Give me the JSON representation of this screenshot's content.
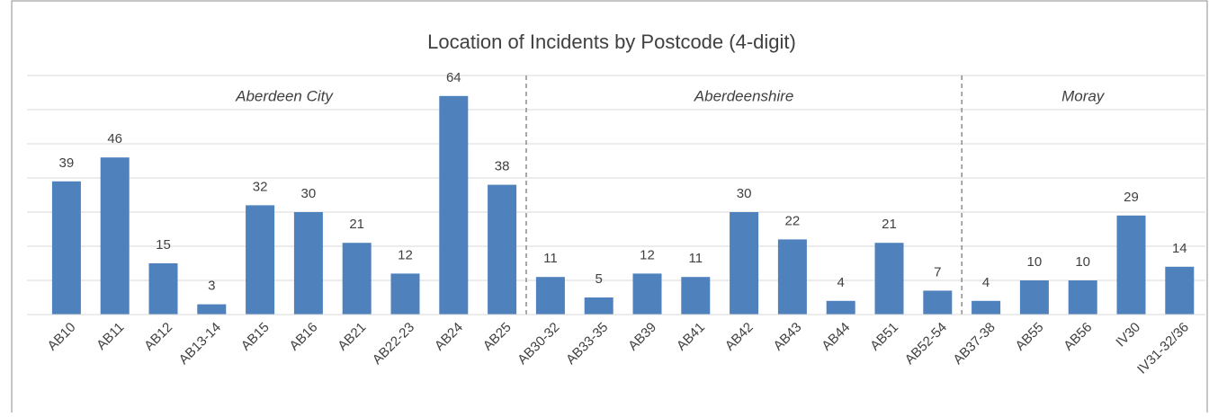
{
  "chart_data": {
    "type": "bar",
    "title": "Location of Incidents by Postcode (4-digit)",
    "categories": [
      "AB10",
      "AB11",
      "AB12",
      "AB13-14",
      "AB15",
      "AB16",
      "AB21",
      "AB22-23",
      "AB24",
      "AB25",
      "AB30-32",
      "AB33-35",
      "AB39",
      "AB41",
      "AB42",
      "AB43",
      "AB44",
      "AB51",
      "AB52-54",
      "AB37-38",
      "AB55",
      "AB56",
      "IV30",
      "IV31-32/36"
    ],
    "values": [
      39,
      46,
      15,
      3,
      32,
      30,
      21,
      12,
      64,
      38,
      11,
      5,
      12,
      11,
      30,
      22,
      4,
      21,
      7,
      4,
      10,
      10,
      29,
      14
    ],
    "color": "#4f81bd",
    "ylim": [
      0,
      70
    ],
    "yticks": [
      0,
      10,
      20,
      30,
      40,
      50,
      60,
      70
    ],
    "grid": true,
    "groups": [
      {
        "name": "Aberdeen City",
        "count": 10
      },
      {
        "name": "Aberdeenshire",
        "count": 9
      },
      {
        "name": "Moray",
        "count": 5
      }
    ]
  }
}
